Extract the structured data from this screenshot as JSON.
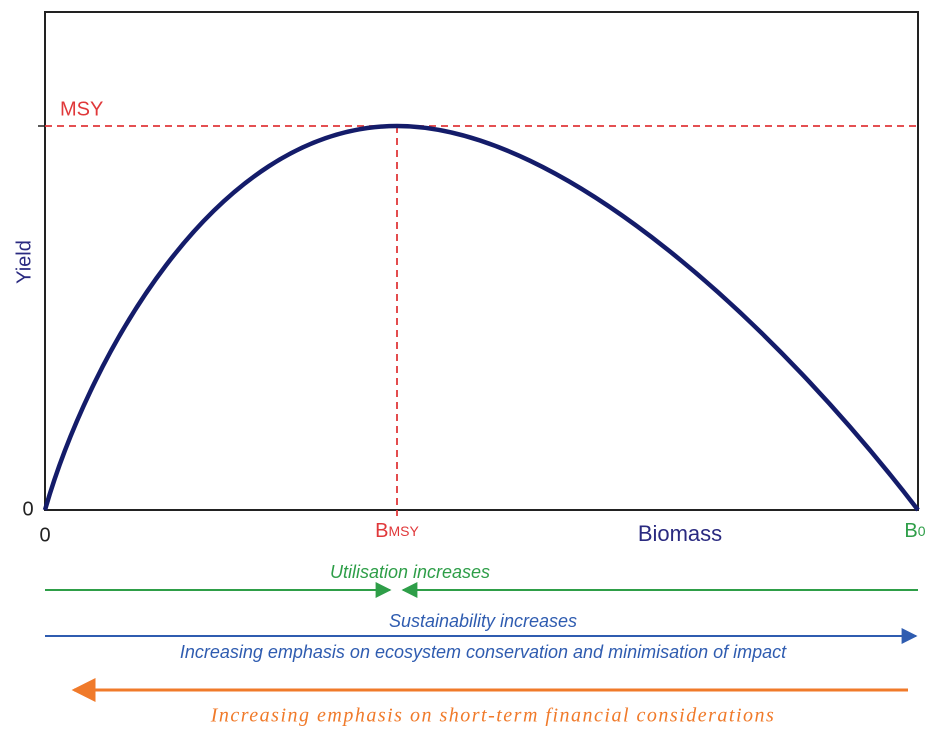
{
  "y_axis_label": "Yield",
  "x_axis_label": "Biomass",
  "origin_y_label": "0",
  "origin_x_label": "0",
  "msy_label": "MSY",
  "bmsy_label": {
    "main": "B",
    "sub": "MSY"
  },
  "b0_label": {
    "main": "B",
    "sub": "0"
  },
  "arrows": {
    "utilisation": "Utilisation increases",
    "sustainability": "Sustainability increases",
    "ecosystem": "Increasing emphasis on ecosystem conservation and minimisation of impact",
    "financial": "Increasing emphasis on short-term financial considerations"
  }
}
